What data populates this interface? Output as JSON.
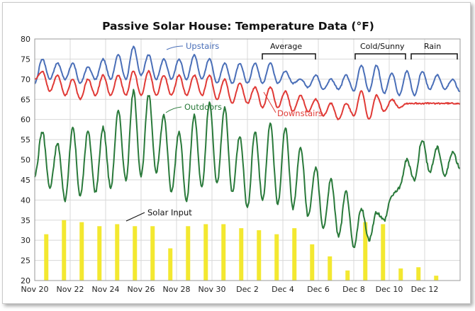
{
  "chart_data": {
    "type": "line",
    "title": "Passive Solar House: Temperature Data (°F)",
    "xlabel": "",
    "ylabel": "",
    "ylim": [
      20,
      80
    ],
    "yticks": [
      20,
      25,
      30,
      35,
      40,
      45,
      50,
      55,
      60,
      65,
      70,
      75,
      80
    ],
    "grid": true,
    "x_ticks": [
      "Nov 20",
      "Nov 22",
      "Nov 24",
      "Nov 26",
      "Nov 28",
      "Nov 30",
      "Dec 2",
      "Dec 4",
      "Dec 6",
      "Dec 8",
      "Dec 10",
      "Dec 12"
    ],
    "x_start_date": "Nov 20",
    "days_total": 24,
    "series": [
      {
        "name": "Upstairs",
        "color": "#4a6fb8",
        "values": [
          69,
          75,
          70,
          74,
          70,
          74,
          69,
          73,
          70,
          75,
          70,
          76,
          70,
          78,
          71,
          76,
          70,
          75,
          70,
          75,
          70,
          76,
          70,
          75,
          69,
          74,
          69,
          74,
          69,
          74,
          69,
          74,
          69,
          72,
          69,
          70,
          68,
          71,
          67.5,
          70,
          67.5,
          71,
          67,
          73.5,
          67,
          73.5,
          66.5,
          71.5,
          66,
          72,
          66,
          72,
          67.5,
          71,
          67.5,
          70,
          67
        ]
      },
      {
        "name": "Downstairs",
        "color": "#e03a36",
        "values": [
          70,
          72,
          67,
          71,
          66,
          70,
          65,
          70,
          66,
          71,
          66,
          71,
          66,
          72,
          66,
          72,
          66,
          71,
          66,
          71,
          66,
          71,
          66,
          71,
          65,
          70,
          64,
          69,
          64,
          68,
          63,
          68,
          63,
          67,
          62,
          66,
          62,
          65,
          61,
          64,
          60,
          64,
          61,
          67,
          60,
          66,
          62,
          65,
          63,
          64,
          64,
          64,
          64,
          64,
          64,
          64,
          64
        ]
      },
      {
        "name": "Outdoors",
        "color": "#2a7a3b",
        "values": [
          46,
          57,
          43,
          54,
          40,
          58,
          41,
          57,
          42,
          58,
          43,
          62,
          45,
          67,
          46,
          66,
          47,
          61,
          42,
          57,
          40,
          61,
          43,
          64,
          44,
          63,
          42,
          56,
          38,
          57,
          40,
          59,
          39,
          58,
          38,
          53,
          36,
          48,
          33,
          45,
          31,
          42,
          28,
          38,
          30,
          37,
          35,
          41,
          43,
          50,
          45,
          55,
          47,
          53,
          46,
          52,
          48
        ]
      },
      {
        "name": "Solar Input",
        "color": "#f3e830",
        "type": "bar",
        "values": [
          31.5,
          35,
          34.5,
          33.5,
          34,
          33.5,
          33.5,
          28,
          33.5,
          34,
          34,
          33,
          32.5,
          31.5,
          33,
          29,
          26,
          22.5,
          34.5,
          34,
          23,
          23.3,
          21.2
        ]
      }
    ],
    "labels": {
      "upstairs": "Upstairs",
      "downstairs": "Downstairs",
      "outdoors": "Outdoors",
      "solar": "Solar Input",
      "average": "Average",
      "cold_sunny": "Cold/Sunny",
      "rain": "Rain"
    }
  }
}
